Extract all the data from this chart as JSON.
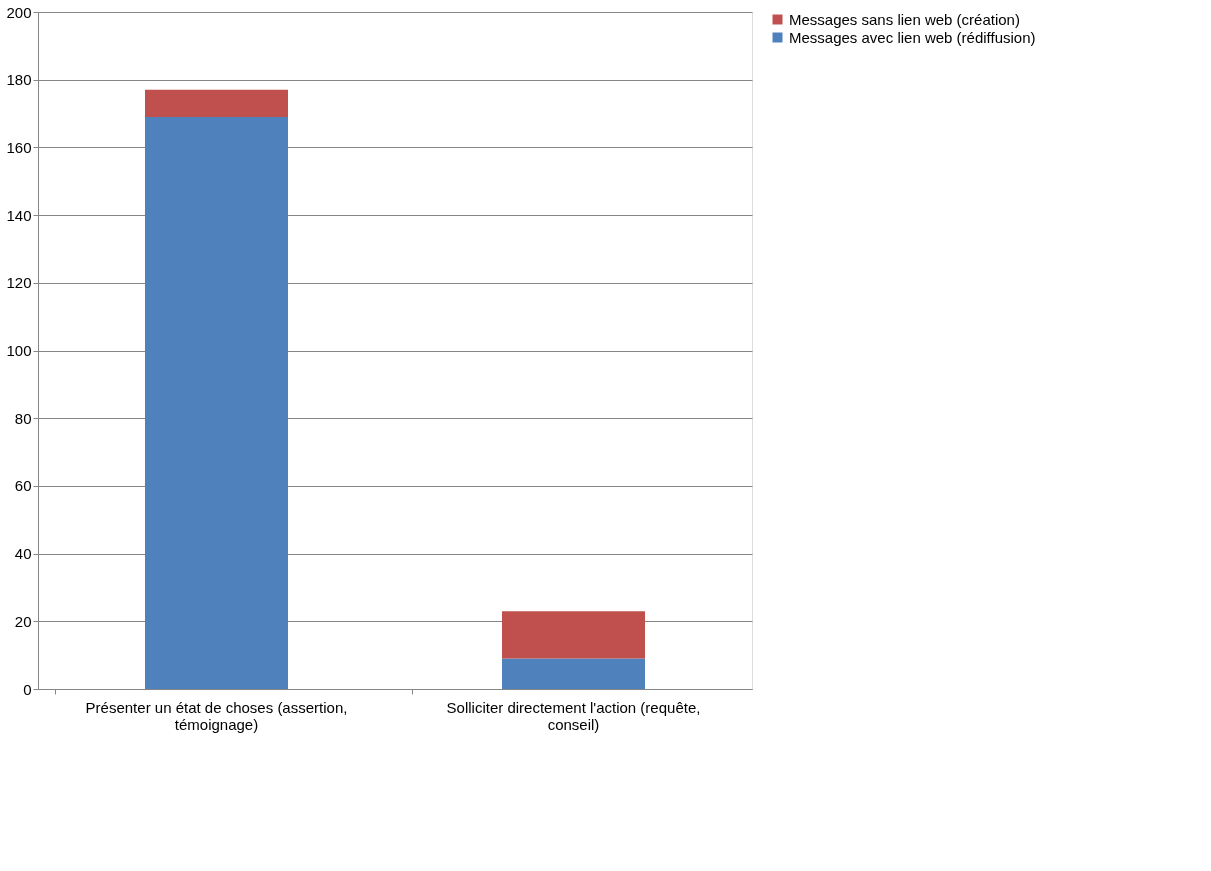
{
  "chart_data": {
    "type": "bar",
    "stacked": true,
    "categories": [
      "Présenter un état de choses (assertion, témoignage)",
      "Solliciter directement l'action (requête, conseil)"
    ],
    "series": [
      {
        "name": "Messages avec lien web (rédiffusion)",
        "color": "#4f81bd",
        "values": [
          169,
          9
        ]
      },
      {
        "name": "Messages sans lien web (création)",
        "color": "#c0504d",
        "values": [
          8,
          14
        ]
      }
    ],
    "ylim": [
      0,
      200
    ],
    "yticks": [
      0,
      20,
      40,
      60,
      80,
      100,
      120,
      140,
      160,
      180,
      200
    ],
    "grid": "y",
    "legend": "right"
  }
}
